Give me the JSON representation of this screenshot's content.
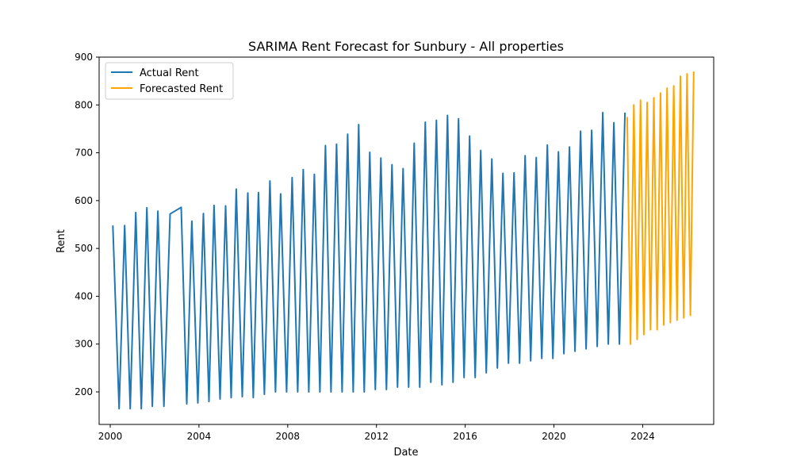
{
  "chart_data": {
    "type": "line",
    "title": "SARIMA Rent Forecast for Sunbury - All properties",
    "xlabel": "Date",
    "ylabel": "Rent",
    "xlim": [
      1999.5,
      2027.2
    ],
    "ylim": [
      132,
      900
    ],
    "x_ticks": [
      2000,
      2004,
      2008,
      2012,
      2016,
      2020,
      2024
    ],
    "y_ticks": [
      200,
      300,
      400,
      500,
      600,
      700,
      800,
      900
    ],
    "grid": false,
    "legend_position": "top-left",
    "colors": {
      "actual": "#1f77b4",
      "forecast": "#ffa500",
      "axes": "#000000",
      "background": "#ffffff"
    },
    "series": [
      {
        "name": "Actual Rent",
        "color": "#1f77b4",
        "x": [
          2000.12,
          2000.4,
          2000.65,
          2000.9,
          2001.15,
          2001.4,
          2001.65,
          2001.9,
          2002.15,
          2002.42,
          2002.7,
          2003.2,
          2003.45,
          2003.68,
          2003.95,
          2004.2,
          2004.45,
          2004.68,
          2004.95,
          2005.2,
          2005.45,
          2005.68,
          2005.95,
          2006.2,
          2006.45,
          2006.68,
          2006.95,
          2007.2,
          2007.45,
          2007.68,
          2007.95,
          2008.2,
          2008.45,
          2008.7,
          2008.95,
          2009.2,
          2009.45,
          2009.7,
          2009.95,
          2010.2,
          2010.45,
          2010.7,
          2010.95,
          2011.2,
          2011.45,
          2011.7,
          2011.95,
          2012.2,
          2012.45,
          2012.7,
          2012.95,
          2013.2,
          2013.45,
          2013.7,
          2013.95,
          2014.2,
          2014.45,
          2014.7,
          2014.95,
          2015.2,
          2015.45,
          2015.7,
          2015.95,
          2016.2,
          2016.45,
          2016.7,
          2016.95,
          2017.2,
          2017.45,
          2017.7,
          2017.95,
          2018.2,
          2018.45,
          2018.7,
          2018.95,
          2019.2,
          2019.45,
          2019.7,
          2019.95,
          2020.2,
          2020.45,
          2020.7,
          2020.95,
          2021.2,
          2021.45,
          2021.7,
          2021.95,
          2022.2,
          2022.45,
          2022.7,
          2022.95,
          2023.2
        ],
        "values": [
          548,
          165,
          548,
          165,
          575,
          165,
          585,
          170,
          578,
          170,
          572,
          586,
          175,
          557,
          177,
          573,
          180,
          590,
          185,
          589,
          188,
          624,
          190,
          616,
          188,
          617,
          195,
          641,
          200,
          614,
          200,
          648,
          200,
          665,
          200,
          655,
          200,
          715,
          200,
          718,
          200,
          739,
          200,
          759,
          200,
          701,
          205,
          689,
          205,
          675,
          210,
          667,
          210,
          720,
          210,
          764,
          220,
          768,
          215,
          778,
          220,
          771,
          230,
          735,
          230,
          705,
          240,
          687,
          250,
          657,
          260,
          658,
          260,
          694,
          265,
          690,
          270,
          716,
          270,
          702,
          280,
          712,
          285,
          745,
          290,
          747,
          295,
          784,
          300,
          763,
          300,
          784
        ]
      },
      {
        "name": "Forecasted Rent",
        "color": "#ffa500",
        "x": [
          2023.3,
          2023.45,
          2023.6,
          2023.75,
          2023.9,
          2024.05,
          2024.2,
          2024.35,
          2024.5,
          2024.65,
          2024.8,
          2024.95,
          2025.1,
          2025.25,
          2025.4,
          2025.55,
          2025.7,
          2025.85,
          2026.0,
          2026.15,
          2026.3
        ],
        "values": [
          775,
          300,
          800,
          310,
          810,
          320,
          805,
          330,
          815,
          330,
          825,
          340,
          835,
          345,
          840,
          350,
          860,
          355,
          865,
          360,
          870
        ]
      }
    ]
  }
}
